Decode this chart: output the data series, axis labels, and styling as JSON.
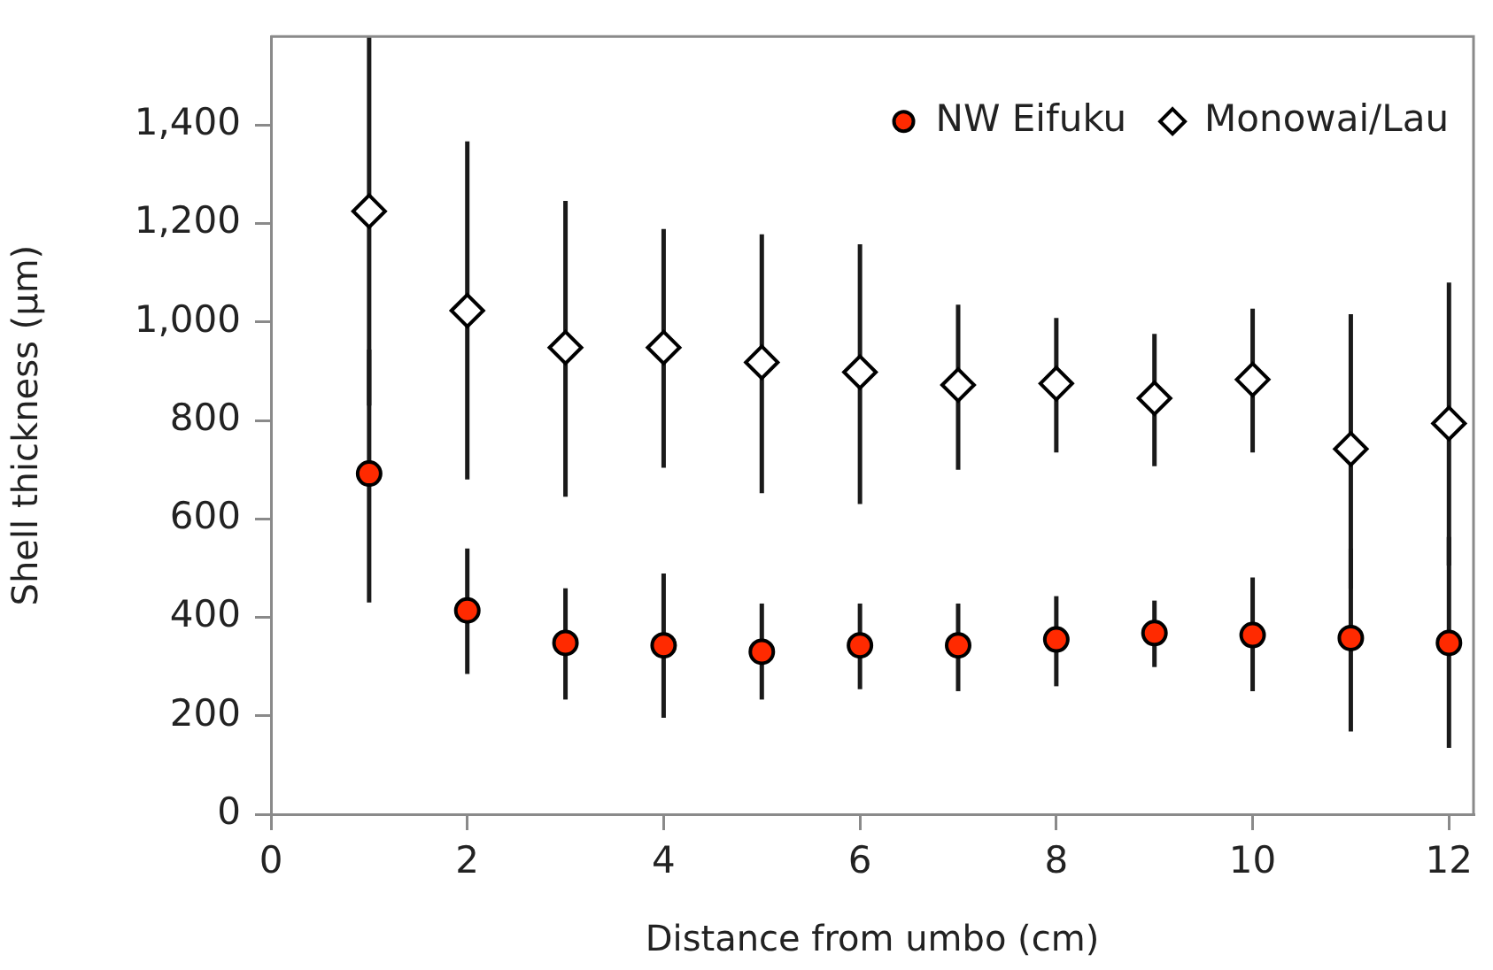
{
  "chart_data": {
    "type": "scatter",
    "xlabel": "Distance from umbo (cm)",
    "ylabel": "Shell thickness (µm)",
    "x": [
      1,
      2,
      3,
      4,
      5,
      6,
      7,
      8,
      9,
      10,
      11,
      12
    ],
    "series": [
      {
        "name": "NW Eifuku",
        "color": "#ff2a00",
        "marker": "circle",
        "values": [
          692,
          414,
          348,
          343,
          330,
          343,
          343,
          355,
          368,
          364,
          358,
          348
        ],
        "errors": [
          [
            430,
            944
          ],
          [
            285,
            540
          ],
          [
            233,
            459
          ],
          [
            196,
            489
          ],
          [
            233,
            428
          ],
          [
            254,
            428
          ],
          [
            250,
            428
          ],
          [
            260,
            443
          ],
          [
            299,
            434
          ],
          [
            250,
            481
          ],
          [
            168,
            540
          ],
          [
            135,
            563
          ]
        ]
      },
      {
        "name": "Monowai/Lau",
        "color": "#ffffff",
        "marker": "diamond",
        "values": [
          1225,
          1023,
          948,
          948,
          918,
          898,
          872,
          875,
          845,
          883,
          742,
          794
        ],
        "errors": [
          [
            830,
            1580
          ],
          [
            680,
            1367
          ],
          [
            645,
            1246
          ],
          [
            704,
            1189
          ],
          [
            652,
            1178
          ],
          [
            630,
            1158
          ],
          [
            700,
            1035
          ],
          [
            735,
            1008
          ],
          [
            707,
            976
          ],
          [
            735,
            1027
          ],
          [
            458,
            1016
          ],
          [
            505,
            1080
          ]
        ]
      }
    ],
    "xlim": [
      0,
      12.25
    ],
    "xticks": [
      0,
      2,
      4,
      6,
      8,
      10,
      12
    ],
    "ylim": [
      0,
      1580
    ],
    "yticks": [
      0,
      200,
      400,
      600,
      800,
      {
        "value": 1000,
        "label": "1,000"
      },
      {
        "value": 1200,
        "label": "1,200"
      },
      {
        "value": 1400,
        "label": "1,400"
      }
    ],
    "grid": false,
    "legend": "top right"
  }
}
